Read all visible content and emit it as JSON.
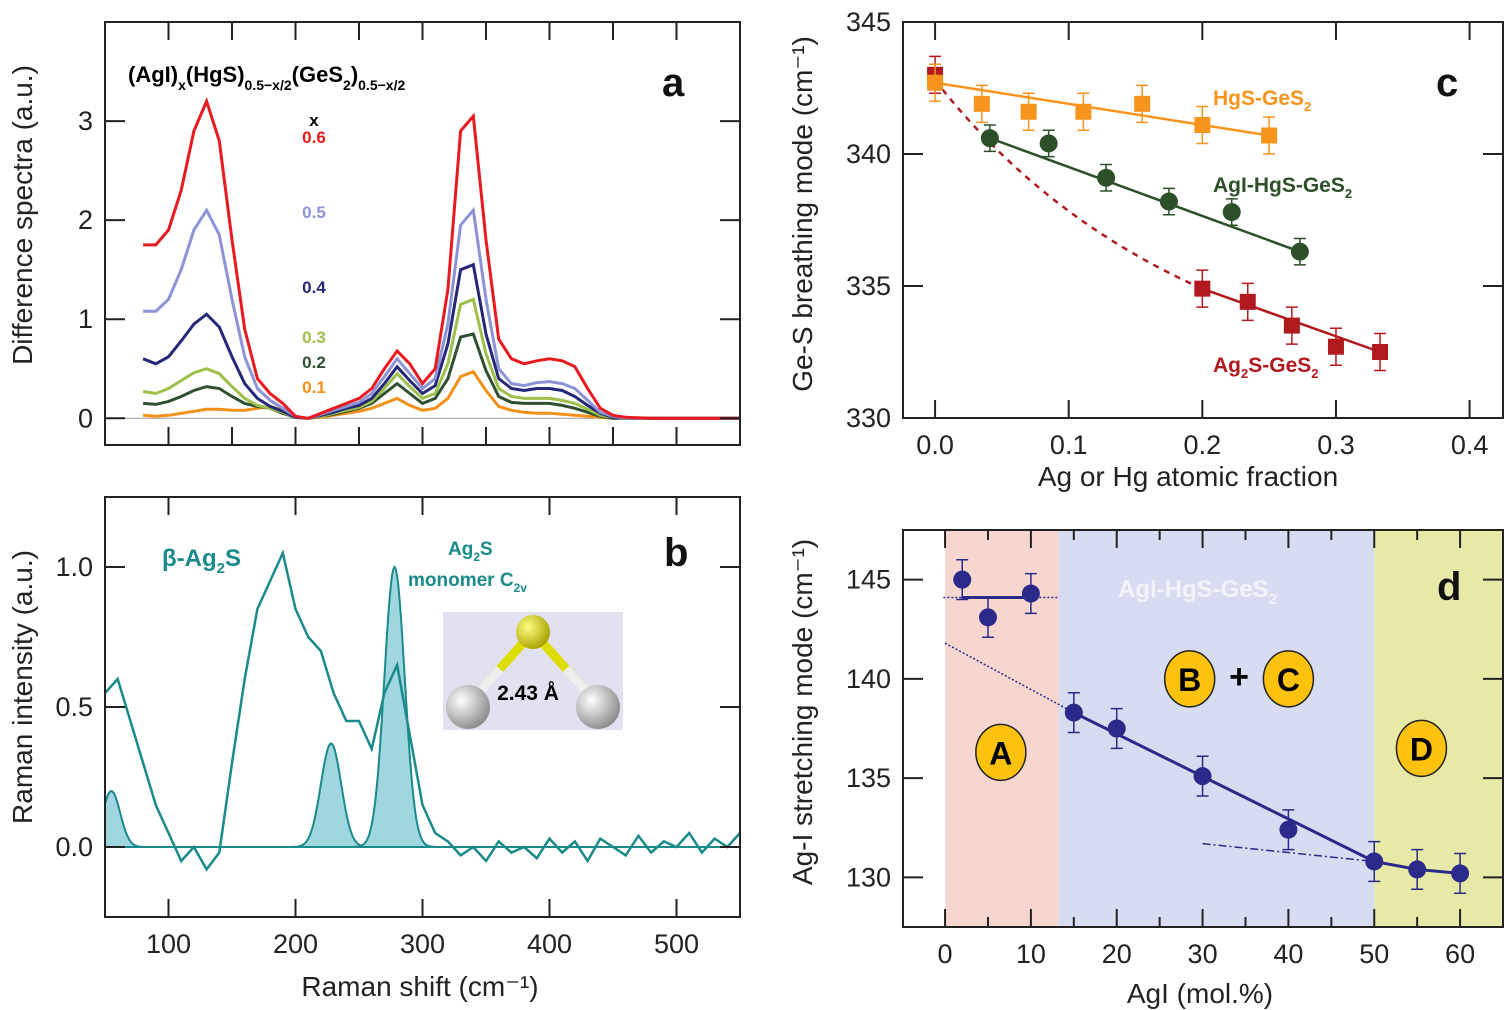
{
  "chart_data": [
    {
      "panel": "a",
      "type": "line",
      "title": "(AgI)x(HgS)0.5-x/2(GeS2)0.5-x/2",
      "formula": {
        "p1": "(AgI)",
        "s1": "x",
        "p2": "(HgS)",
        "s2": "0.5−x/2",
        "p3": "(GeS",
        "s3": "2",
        "p4": ")",
        "s4": "0.5−x/2"
      },
      "legend_title": "x",
      "ylabel": "Difference spectra (a.u.)",
      "xlabel": "",
      "xlim": [
        50,
        550
      ],
      "ylim": [
        -0.27,
        4.0
      ],
      "yticks": [
        "0",
        "1",
        "2",
        "3"
      ],
      "x": [
        80,
        90,
        100,
        110,
        120,
        130,
        140,
        150,
        160,
        170,
        180,
        190,
        200,
        210,
        220,
        230,
        240,
        250,
        260,
        270,
        280,
        290,
        300,
        310,
        320,
        330,
        340,
        350,
        360,
        370,
        380,
        390,
        400,
        410,
        420,
        430,
        440,
        450,
        460,
        480,
        500,
        550
      ],
      "series": [
        {
          "name": "0.6",
          "color": "#e8191f",
          "values": [
            1.75,
            1.75,
            1.9,
            2.3,
            2.9,
            3.2,
            2.8,
            1.8,
            0.9,
            0.4,
            0.25,
            0.15,
            0.02,
            0.0,
            0.05,
            0.1,
            0.15,
            0.2,
            0.3,
            0.5,
            0.68,
            0.55,
            0.35,
            0.5,
            1.3,
            2.9,
            3.05,
            1.8,
            0.8,
            0.6,
            0.55,
            0.58,
            0.6,
            0.58,
            0.52,
            0.3,
            0.1,
            0.03,
            0.01,
            0,
            0,
            0
          ]
        },
        {
          "name": "0.5",
          "color": "#8c93d6",
          "values": [
            1.08,
            1.08,
            1.2,
            1.5,
            1.9,
            2.1,
            1.85,
            1.2,
            0.62,
            0.3,
            0.18,
            0.1,
            0.02,
            0,
            0.04,
            0.08,
            0.12,
            0.16,
            0.25,
            0.42,
            0.6,
            0.45,
            0.3,
            0.4,
            0.95,
            1.95,
            2.1,
            1.2,
            0.5,
            0.35,
            0.33,
            0.36,
            0.37,
            0.35,
            0.3,
            0.18,
            0.06,
            0.02,
            0,
            0,
            0,
            0
          ]
        },
        {
          "name": "0.4",
          "color": "#252878",
          "values": [
            0.6,
            0.55,
            0.62,
            0.78,
            0.95,
            1.05,
            0.92,
            0.62,
            0.35,
            0.2,
            0.12,
            0.07,
            0.01,
            0,
            0.03,
            0.06,
            0.1,
            0.13,
            0.2,
            0.35,
            0.52,
            0.38,
            0.25,
            0.33,
            0.75,
            1.5,
            1.55,
            0.85,
            0.4,
            0.3,
            0.28,
            0.3,
            0.3,
            0.28,
            0.22,
            0.13,
            0.05,
            0.01,
            0,
            0,
            0,
            0
          ]
        },
        {
          "name": "0.3",
          "color": "#9cc04a",
          "values": [
            0.27,
            0.25,
            0.3,
            0.38,
            0.46,
            0.5,
            0.45,
            0.32,
            0.2,
            0.13,
            0.1,
            0.06,
            0.01,
            0,
            0.02,
            0.05,
            0.08,
            0.11,
            0.17,
            0.3,
            0.45,
            0.32,
            0.2,
            0.25,
            0.55,
            1.15,
            1.2,
            0.65,
            0.3,
            0.22,
            0.2,
            0.2,
            0.2,
            0.18,
            0.15,
            0.09,
            0.03,
            0.01,
            0,
            0,
            0,
            0
          ]
        },
        {
          "name": "0.2",
          "color": "#2f5030",
          "values": [
            0.15,
            0.14,
            0.17,
            0.22,
            0.28,
            0.32,
            0.3,
            0.22,
            0.15,
            0.12,
            0.1,
            0.05,
            0.01,
            0,
            0.02,
            0.04,
            0.07,
            0.1,
            0.15,
            0.25,
            0.35,
            0.25,
            0.15,
            0.2,
            0.4,
            0.82,
            0.85,
            0.48,
            0.22,
            0.16,
            0.15,
            0.15,
            0.15,
            0.13,
            0.1,
            0.06,
            0.02,
            0,
            0,
            0,
            0,
            0
          ]
        },
        {
          "name": "0.1",
          "color": "#f39019",
          "values": [
            0.03,
            0.02,
            0.03,
            0.05,
            0.07,
            0.09,
            0.09,
            0.08,
            0.08,
            0.1,
            0.12,
            0.08,
            0.01,
            0,
            0.01,
            0.03,
            0.05,
            0.07,
            0.1,
            0.15,
            0.2,
            0.13,
            0.08,
            0.1,
            0.2,
            0.42,
            0.47,
            0.28,
            0.12,
            0.08,
            0.06,
            0.05,
            0.05,
            0.04,
            0.03,
            0.02,
            0.01,
            0,
            0,
            0,
            0,
            0
          ]
        }
      ]
    },
    {
      "panel": "b",
      "type": "line",
      "xlabel": "Raman shift (cm⁻¹)",
      "ylabel": "Raman intensity (a.u.)",
      "xlim": [
        50,
        550
      ],
      "ylim": [
        -0.25,
        1.25
      ],
      "xticks": [
        "100",
        "200",
        "300",
        "400",
        "500"
      ],
      "yticks": [
        "0.0",
        "0.5",
        "1.0"
      ],
      "color": "#1a8a8a",
      "fill_color": "#9fd6e0",
      "spectrum": {
        "x": [
          50,
          60,
          70,
          80,
          90,
          100,
          110,
          120,
          130,
          140,
          150,
          160,
          170,
          180,
          190,
          200,
          210,
          220,
          230,
          240,
          250,
          260,
          270,
          280,
          290,
          300,
          310,
          320,
          330,
          340,
          350,
          360,
          370,
          380,
          390,
          400,
          410,
          420,
          430,
          440,
          450,
          460,
          470,
          480,
          490,
          500,
          510,
          520,
          530,
          540,
          550
        ],
        "y": [
          0.55,
          0.6,
          0.45,
          0.3,
          0.15,
          0.05,
          -0.05,
          0.0,
          -0.08,
          -0.02,
          0.3,
          0.6,
          0.85,
          0.95,
          1.05,
          0.85,
          0.75,
          0.7,
          0.55,
          0.45,
          0.45,
          0.35,
          0.55,
          0.65,
          0.4,
          0.15,
          0.05,
          0.02,
          -0.03,
          0.0,
          -0.05,
          0.02,
          -0.02,
          0.0,
          -0.04,
          0.03,
          -0.02,
          0.02,
          -0.05,
          0.03,
          0.0,
          -0.03,
          0.04,
          -0.02,
          0.02,
          0.0,
          0.05,
          -0.02,
          0.03,
          0.0,
          0.05
        ]
      },
      "peaks": [
        {
          "center": 55,
          "height": 0.2,
          "width": 7
        },
        {
          "center": 228,
          "height": 0.37,
          "width": 8
        },
        {
          "center": 278,
          "height": 1.0,
          "width": 8
        }
      ],
      "annotations": {
        "beta": {
          "pre": "β-Ag",
          "sub": "2",
          "post": "S"
        },
        "monomer1": {
          "pre": "Ag",
          "sub": "2",
          "post": "S"
        },
        "monomer2": {
          "pre": "monomer C",
          "sub": "2v"
        },
        "bond_length": "2.43 Å"
      }
    },
    {
      "panel": "c",
      "type": "scatter",
      "xlabel": "Ag or Hg atomic fraction",
      "ylabel": "Ge-S breathing mode (cm⁻¹)",
      "xlim": [
        -0.024,
        0.425
      ],
      "ylim": [
        330,
        345
      ],
      "xticks": [
        "0.0",
        "0.1",
        "0.2",
        "0.3",
        "0.4"
      ],
      "yticks": [
        "330",
        "335",
        "340",
        "345"
      ],
      "series": [
        {
          "name": "HgS-GeS2",
          "label": {
            "pre": "HgS-GeS",
            "sub": "2"
          },
          "color": "#f7941d",
          "marker": "square",
          "x": [
            0,
            0.035,
            0.07,
            0.111,
            0.155,
            0.2,
            0.25
          ],
          "y": [
            342.7,
            341.9,
            341.6,
            341.6,
            341.9,
            341.1,
            340.7
          ],
          "err": 0.7
        },
        {
          "name": "AgI-HgS-GeS2",
          "label": {
            "pre": "AgI-HgS-GeS",
            "sub": "2"
          },
          "color": "#2d4f2a",
          "marker": "circle",
          "x": [
            0.041,
            0.085,
            0.128,
            0.175,
            0.222,
            0.273
          ],
          "y": [
            340.6,
            340.4,
            339.1,
            338.2,
            337.8,
            336.3
          ],
          "err": 0.5
        },
        {
          "name": "Ag2S-GeS2",
          "label": {
            "pre": "Ag",
            "sub": "2",
            "post": "S-GeS",
            "sub2": "2"
          },
          "color": "#b0191e",
          "marker": "square",
          "x": [
            0,
            0.2,
            0.234,
            0.267,
            0.3,
            0.333
          ],
          "y": [
            343.0,
            334.9,
            334.4,
            333.5,
            332.7,
            332.5
          ],
          "err": 0.7
        }
      ]
    },
    {
      "panel": "d",
      "type": "scatter",
      "xlabel": "AgI (mol.%)",
      "ylabel": "Ag-I stretching mode (cm⁻¹)",
      "xlim": [
        -4.9,
        65
      ],
      "ylim": [
        127.5,
        147.5
      ],
      "xticks": [
        "0",
        "10",
        "20",
        "30",
        "40",
        "50",
        "60"
      ],
      "yticks": [
        "130",
        "135",
        "140",
        "145"
      ],
      "color": "#2b2a8a",
      "x": [
        2,
        5,
        10,
        15,
        20,
        30,
        40,
        50,
        55,
        60
      ],
      "y": [
        145.0,
        143.1,
        144.3,
        138.3,
        137.5,
        135.1,
        132.4,
        130.8,
        130.4,
        130.2
      ],
      "err": 1.0,
      "regions": [
        {
          "label": "A",
          "from": 0,
          "to": 13.2,
          "color": "#f7d6d0"
        },
        {
          "label": "B + C",
          "from": 13.2,
          "to": 50,
          "color": "#d8dcf0"
        },
        {
          "label": "D",
          "from": 50,
          "to": 65,
          "color": "#e6eaa6"
        }
      ],
      "region_title": {
        "pre": "AgI-HgS-GeS",
        "sub": "2"
      },
      "circles": [
        "A",
        "B",
        "C",
        "D"
      ],
      "plus": "+",
      "circle_color": "#fdc20e"
    }
  ],
  "panel_labels": [
    "a",
    "b",
    "c",
    "d"
  ]
}
